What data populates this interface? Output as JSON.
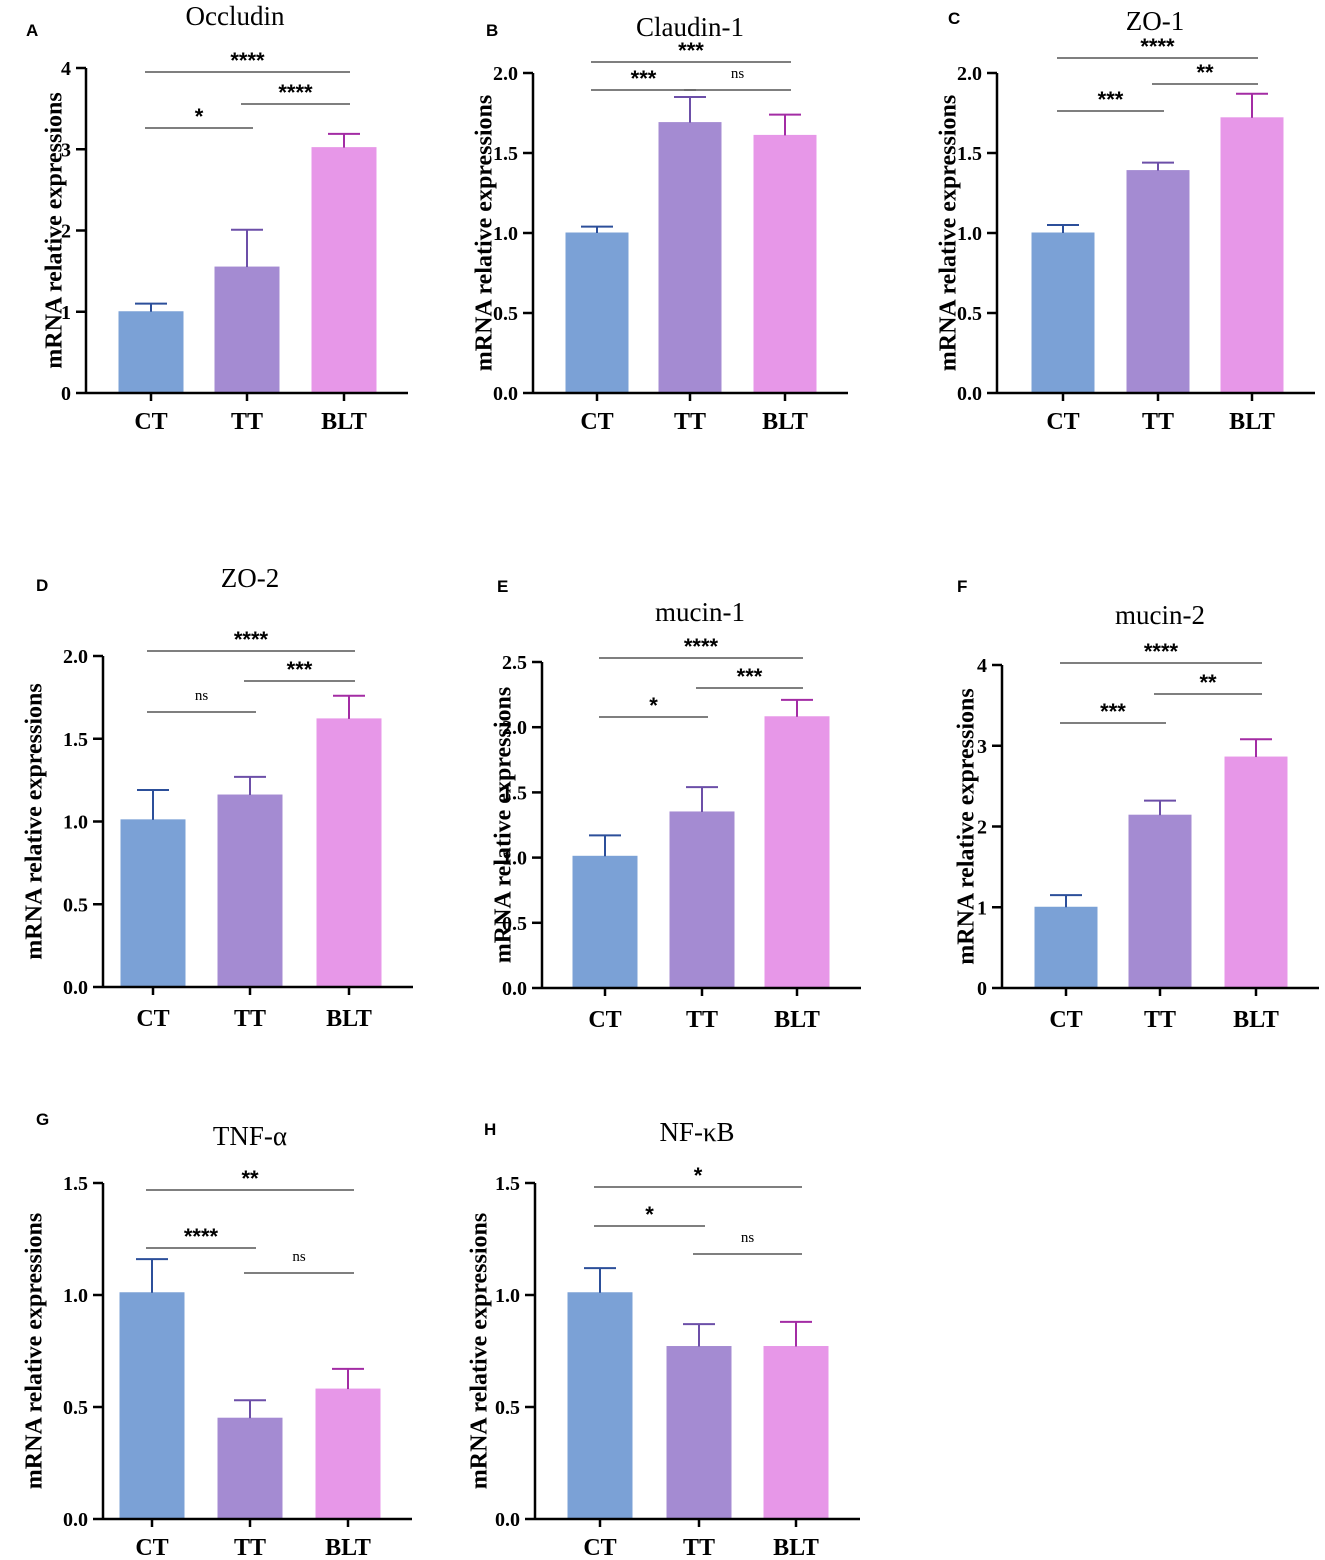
{
  "colors": {
    "CT": "#7ba1d6",
    "TT": "#a48bd2",
    "BLT": "#e797e8",
    "axis": "#000000"
  },
  "chart_data": [
    {
      "panel": "A",
      "type": "bar",
      "title": "Occludin",
      "ylabel": "mRNA relative expressions",
      "xlabel": "",
      "categories": [
        "CT",
        "TT",
        "BLT"
      ],
      "values": [
        1.0,
        1.55,
        3.02
      ],
      "errors": [
        0.1,
        0.46,
        0.17
      ],
      "ylim": [
        0,
        4
      ],
      "yticks": [
        "0",
        "1",
        "2",
        "3",
        "4"
      ],
      "ytick_values": [
        0,
        1,
        2,
        3,
        4
      ],
      "significance": [
        {
          "from": "CT",
          "to": "TT",
          "label": "*"
        },
        {
          "from": "TT",
          "to": "BLT",
          "label": "****"
        },
        {
          "from": "CT",
          "to": "BLT",
          "label": "****"
        }
      ]
    },
    {
      "panel": "B",
      "type": "bar",
      "title": "Claudin-1",
      "ylabel": "mRNA relative expressions",
      "xlabel": "",
      "categories": [
        "CT",
        "TT",
        "BLT"
      ],
      "values": [
        1.0,
        1.69,
        1.61
      ],
      "errors": [
        0.04,
        0.16,
        0.13
      ],
      "ylim": [
        0,
        2.0
      ],
      "yticks": [
        "0.0",
        "0.5",
        "1.0",
        "1.5",
        "2.0"
      ],
      "ytick_values": [
        0,
        0.5,
        1,
        1.5,
        2
      ],
      "significance": [
        {
          "from": "CT",
          "to": "TT",
          "label": "***"
        },
        {
          "from": "TT",
          "to": "BLT",
          "label": "ns"
        },
        {
          "from": "CT",
          "to": "BLT",
          "label": "***"
        }
      ]
    },
    {
      "panel": "C",
      "type": "bar",
      "title": "ZO-1",
      "ylabel": "mRNA relative expressions",
      "xlabel": "",
      "categories": [
        "CT",
        "TT",
        "BLT"
      ],
      "values": [
        1.0,
        1.39,
        1.72
      ],
      "errors": [
        0.05,
        0.05,
        0.15
      ],
      "ylim": [
        0,
        2.0
      ],
      "yticks": [
        "0.0",
        "0.5",
        "1.0",
        "1.5",
        "2.0"
      ],
      "ytick_values": [
        0,
        0.5,
        1,
        1.5,
        2
      ],
      "significance": [
        {
          "from": "CT",
          "to": "TT",
          "label": "***"
        },
        {
          "from": "TT",
          "to": "BLT",
          "label": "**"
        },
        {
          "from": "CT",
          "to": "BLT",
          "label": "****"
        }
      ]
    },
    {
      "panel": "D",
      "type": "bar",
      "title": "ZO-2",
      "ylabel": "mRNA relative expressions",
      "xlabel": "",
      "categories": [
        "CT",
        "TT",
        "BLT"
      ],
      "values": [
        1.01,
        1.16,
        1.62
      ],
      "errors": [
        0.18,
        0.11,
        0.14
      ],
      "ylim": [
        0,
        2.0
      ],
      "yticks": [
        "0.0",
        "0.5",
        "1.0",
        "1.5",
        "2.0"
      ],
      "ytick_values": [
        0,
        0.5,
        1,
        1.5,
        2
      ],
      "significance": [
        {
          "from": "CT",
          "to": "TT",
          "label": "ns"
        },
        {
          "from": "TT",
          "to": "BLT",
          "label": "***"
        },
        {
          "from": "CT",
          "to": "BLT",
          "label": "****"
        }
      ]
    },
    {
      "panel": "E",
      "type": "bar",
      "title": "mucin-1",
      "ylabel": "mRNA relative expressions",
      "xlabel": "",
      "categories": [
        "CT",
        "TT",
        "BLT"
      ],
      "values": [
        1.01,
        1.35,
        2.08
      ],
      "errors": [
        0.16,
        0.19,
        0.13
      ],
      "ylim": [
        0,
        2.5
      ],
      "yticks": [
        "0.0",
        "0.5",
        "1.0",
        "1.5",
        "2.0",
        "2.5"
      ],
      "ytick_values": [
        0,
        0.5,
        1,
        1.5,
        2,
        2.5
      ],
      "significance": [
        {
          "from": "CT",
          "to": "TT",
          "label": "*"
        },
        {
          "from": "TT",
          "to": "BLT",
          "label": "***"
        },
        {
          "from": "CT",
          "to": "BLT",
          "label": "****"
        }
      ]
    },
    {
      "panel": "F",
      "type": "bar",
      "title": "mucin-2",
      "ylabel": "mRNA relative expressions",
      "xlabel": "",
      "categories": [
        "CT",
        "TT",
        "BLT"
      ],
      "values": [
        1.0,
        2.14,
        2.86
      ],
      "errors": [
        0.15,
        0.18,
        0.22
      ],
      "ylim": [
        0,
        4
      ],
      "yticks": [
        "0",
        "1",
        "2",
        "3",
        "4"
      ],
      "ytick_values": [
        0,
        1,
        2,
        3,
        4
      ],
      "significance": [
        {
          "from": "CT",
          "to": "TT",
          "label": "***"
        },
        {
          "from": "TT",
          "to": "BLT",
          "label": "**"
        },
        {
          "from": "CT",
          "to": "BLT",
          "label": "****"
        }
      ]
    },
    {
      "panel": "G",
      "type": "bar",
      "title": "TNF-α",
      "ylabel": "mRNA relative expressions",
      "xlabel": "",
      "categories": [
        "CT",
        "TT",
        "BLT"
      ],
      "values": [
        1.01,
        0.45,
        0.58
      ],
      "errors": [
        0.15,
        0.08,
        0.09
      ],
      "ylim": [
        0,
        1.5
      ],
      "yticks": [
        "0.0",
        "0.5",
        "1.0",
        "1.5"
      ],
      "ytick_values": [
        0,
        0.5,
        1,
        1.5
      ],
      "significance": [
        {
          "from": "CT",
          "to": "TT",
          "label": "****"
        },
        {
          "from": "TT",
          "to": "BLT",
          "label": "ns"
        },
        {
          "from": "CT",
          "to": "BLT",
          "label": "**"
        }
      ]
    },
    {
      "panel": "H",
      "type": "bar",
      "title": "NF-κB",
      "ylabel": "mRNA relative expressions",
      "xlabel": "",
      "categories": [
        "CT",
        "TT",
        "BLT"
      ],
      "values": [
        1.01,
        0.77,
        0.77
      ],
      "errors": [
        0.11,
        0.1,
        0.11
      ],
      "ylim": [
        0,
        1.5
      ],
      "yticks": [
        "0.0",
        "0.5",
        "1.0",
        "1.5"
      ],
      "ytick_values": [
        0,
        0.5,
        1,
        1.5
      ],
      "significance": [
        {
          "from": "CT",
          "to": "TT",
          "label": "*"
        },
        {
          "from": "TT",
          "to": "BLT",
          "label": "ns"
        },
        {
          "from": "CT",
          "to": "BLT",
          "label": "*"
        }
      ]
    }
  ]
}
